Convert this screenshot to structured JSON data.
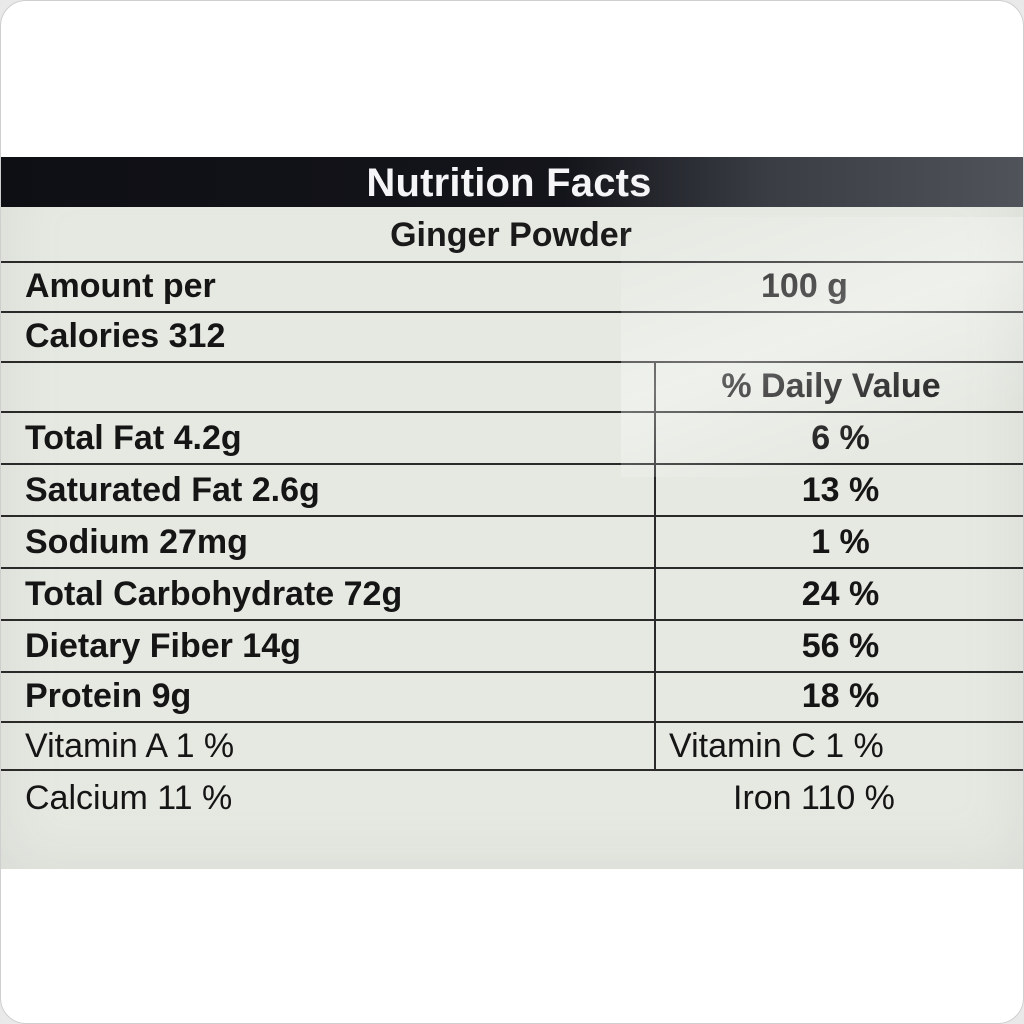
{
  "title": "Nutrition Facts",
  "product": "Ginger Powder",
  "amount": {
    "label": "Amount per",
    "value": "100 g"
  },
  "calories": "Calories 312",
  "daily_value_header": "% Daily Value",
  "nutrients": [
    {
      "label": "Total Fat 4.2g",
      "dv": "6 %"
    },
    {
      "label": "Saturated Fat 2.6g",
      "dv": "13 %"
    },
    {
      "label": "Sodium 27mg",
      "dv": "1 %"
    },
    {
      "label": "Total Carbohydrate 72g",
      "dv": "24 %"
    },
    {
      "label": "Dietary Fiber 14g",
      "dv": "56 %"
    },
    {
      "label": "Protein 9g",
      "dv": "18 %"
    }
  ],
  "vitamins": [
    {
      "left": "Vitamin A 1 %",
      "right": "Vitamin C 1 %"
    },
    {
      "left": "Calcium 11 %",
      "right": "Iron 110 %"
    }
  ]
}
